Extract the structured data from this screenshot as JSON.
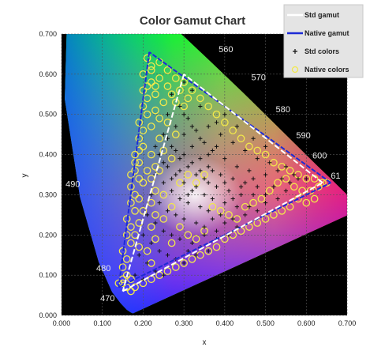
{
  "chart_data": {
    "type": "scatter",
    "title": "Color Gamut Chart",
    "xlabel": "x",
    "ylabel": "y",
    "xlim": [
      0,
      0.7
    ],
    "ylim": [
      0,
      0.7
    ],
    "x_ticks": [
      "0.000",
      "0.100",
      "0.200",
      "0.300",
      "0.400",
      "0.500",
      "0.600",
      "0.700"
    ],
    "y_ticks": [
      "0.000",
      "0.100",
      "0.200",
      "0.300",
      "0.400",
      "0.500",
      "0.600",
      "0.700"
    ],
    "grid": true,
    "legend_position": "top-right",
    "wavelength_labels": [
      {
        "text": "470",
        "x": 0.095,
        "y": 0.035
      },
      {
        "text": "480",
        "x": 0.085,
        "y": 0.11
      },
      {
        "text": "490",
        "x": 0.01,
        "y": 0.32
      },
      {
        "text": "560",
        "x": 0.385,
        "y": 0.655
      },
      {
        "text": "570",
        "x": 0.465,
        "y": 0.585
      },
      {
        "text": "580",
        "x": 0.525,
        "y": 0.505
      },
      {
        "text": "590",
        "x": 0.575,
        "y": 0.44
      },
      {
        "text": "600",
        "x": 0.615,
        "y": 0.39
      },
      {
        "text": "61",
        "x": 0.66,
        "y": 0.34
      }
    ],
    "series": [
      {
        "name": "Std gamut",
        "kind": "line",
        "color": "#ffffff",
        "points": [
          [
            0.64,
            0.33
          ],
          [
            0.3,
            0.6
          ],
          [
            0.15,
            0.06
          ],
          [
            0.64,
            0.33
          ]
        ]
      },
      {
        "name": "Native gamut",
        "kind": "line",
        "color": "#1e2bd6",
        "points": [
          [
            0.66,
            0.33
          ],
          [
            0.215,
            0.655
          ],
          [
            0.14,
            0.07
          ],
          [
            0.66,
            0.33
          ]
        ]
      },
      {
        "name": "Std colors",
        "kind": "marker",
        "marker": "+",
        "color": "#111111",
        "points": [
          [
            0.27,
            0.55
          ],
          [
            0.29,
            0.52
          ],
          [
            0.31,
            0.49
          ],
          [
            0.33,
            0.46
          ],
          [
            0.35,
            0.43
          ],
          [
            0.37,
            0.41
          ],
          [
            0.4,
            0.39
          ],
          [
            0.43,
            0.37
          ],
          [
            0.46,
            0.36
          ],
          [
            0.5,
            0.35
          ],
          [
            0.54,
            0.34
          ],
          [
            0.58,
            0.34
          ],
          [
            0.26,
            0.5
          ],
          [
            0.28,
            0.47
          ],
          [
            0.3,
            0.45
          ],
          [
            0.32,
            0.42
          ],
          [
            0.34,
            0.39
          ],
          [
            0.36,
            0.37
          ],
          [
            0.39,
            0.35
          ],
          [
            0.42,
            0.34
          ],
          [
            0.45,
            0.33
          ],
          [
            0.48,
            0.32
          ],
          [
            0.52,
            0.32
          ],
          [
            0.56,
            0.33
          ],
          [
            0.25,
            0.45
          ],
          [
            0.27,
            0.42
          ],
          [
            0.29,
            0.39
          ],
          [
            0.31,
            0.37
          ],
          [
            0.33,
            0.35
          ],
          [
            0.36,
            0.33
          ],
          [
            0.38,
            0.32
          ],
          [
            0.41,
            0.31
          ],
          [
            0.44,
            0.3
          ],
          [
            0.47,
            0.3
          ],
          [
            0.5,
            0.3
          ],
          [
            0.24,
            0.4
          ],
          [
            0.26,
            0.37
          ],
          [
            0.28,
            0.35
          ],
          [
            0.3,
            0.33
          ],
          [
            0.32,
            0.31
          ],
          [
            0.35,
            0.3
          ],
          [
            0.37,
            0.29
          ],
          [
            0.4,
            0.28
          ],
          [
            0.43,
            0.27
          ],
          [
            0.46,
            0.27
          ],
          [
            0.23,
            0.35
          ],
          [
            0.25,
            0.33
          ],
          [
            0.27,
            0.31
          ],
          [
            0.29,
            0.29
          ],
          [
            0.31,
            0.28
          ],
          [
            0.34,
            0.27
          ],
          [
            0.36,
            0.26
          ],
          [
            0.39,
            0.25
          ],
          [
            0.42,
            0.24
          ],
          [
            0.22,
            0.3
          ],
          [
            0.24,
            0.28
          ],
          [
            0.26,
            0.26
          ],
          [
            0.28,
            0.25
          ],
          [
            0.3,
            0.24
          ],
          [
            0.33,
            0.23
          ],
          [
            0.35,
            0.22
          ],
          [
            0.38,
            0.21
          ],
          [
            0.21,
            0.25
          ],
          [
            0.23,
            0.23
          ],
          [
            0.25,
            0.21
          ],
          [
            0.27,
            0.2
          ],
          [
            0.29,
            0.19
          ],
          [
            0.32,
            0.18
          ],
          [
            0.34,
            0.17
          ],
          [
            0.2,
            0.2
          ],
          [
            0.22,
            0.18
          ],
          [
            0.24,
            0.16
          ],
          [
            0.26,
            0.15
          ],
          [
            0.28,
            0.14
          ],
          [
            0.3,
            0.13
          ],
          [
            0.19,
            0.15
          ],
          [
            0.21,
            0.13
          ],
          [
            0.23,
            0.11
          ],
          [
            0.25,
            0.1
          ],
          [
            0.18,
            0.1
          ],
          [
            0.2,
            0.09
          ],
          [
            0.36,
            0.47
          ],
          [
            0.39,
            0.45
          ],
          [
            0.42,
            0.43
          ],
          [
            0.45,
            0.41
          ],
          [
            0.48,
            0.39
          ],
          [
            0.51,
            0.38
          ],
          [
            0.4,
            0.5
          ],
          [
            0.43,
            0.47
          ],
          [
            0.47,
            0.44
          ],
          [
            0.5,
            0.42
          ],
          [
            0.34,
            0.52
          ],
          [
            0.32,
            0.56
          ],
          [
            0.3,
            0.58
          ],
          [
            0.38,
            0.48
          ],
          [
            0.55,
            0.37
          ],
          [
            0.53,
            0.36
          ],
          [
            0.57,
            0.35
          ],
          [
            0.6,
            0.34
          ],
          [
            0.31,
            0.3
          ],
          [
            0.33,
            0.32
          ],
          [
            0.35,
            0.34
          ],
          [
            0.37,
            0.36
          ],
          [
            0.29,
            0.36
          ],
          [
            0.27,
            0.34
          ],
          [
            0.25,
            0.38
          ],
          [
            0.23,
            0.42
          ],
          [
            0.4,
            0.33
          ],
          [
            0.44,
            0.32
          ],
          [
            0.47,
            0.34
          ],
          [
            0.42,
            0.29
          ],
          [
            0.45,
            0.25
          ],
          [
            0.48,
            0.26
          ],
          [
            0.5,
            0.28
          ],
          [
            0.53,
            0.29
          ],
          [
            0.55,
            0.31
          ],
          [
            0.37,
            0.24
          ],
          [
            0.4,
            0.23
          ],
          [
            0.43,
            0.22
          ],
          [
            0.35,
            0.2
          ],
          [
            0.38,
            0.19
          ],
          [
            0.41,
            0.2
          ],
          [
            0.33,
            0.15
          ],
          [
            0.36,
            0.16
          ],
          [
            0.31,
            0.16
          ],
          [
            0.26,
            0.44
          ],
          [
            0.28,
            0.41
          ],
          [
            0.3,
            0.4
          ],
          [
            0.32,
            0.38
          ],
          [
            0.34,
            0.36
          ],
          [
            0.36,
            0.4
          ],
          [
            0.38,
            0.42
          ],
          [
            0.34,
            0.44
          ],
          [
            0.32,
            0.47
          ],
          [
            0.3,
            0.5
          ]
        ]
      },
      {
        "name": "Native colors",
        "kind": "marker",
        "marker": "circle",
        "color": "#f2e84a",
        "points": [
          [
            0.21,
            0.64
          ],
          [
            0.22,
            0.62
          ],
          [
            0.2,
            0.6
          ],
          [
            0.22,
            0.58
          ],
          [
            0.2,
            0.56
          ],
          [
            0.21,
            0.54
          ],
          [
            0.2,
            0.52
          ],
          [
            0.21,
            0.5
          ],
          [
            0.19,
            0.48
          ],
          [
            0.2,
            0.46
          ],
          [
            0.19,
            0.44
          ],
          [
            0.2,
            0.42
          ],
          [
            0.18,
            0.4
          ],
          [
            0.19,
            0.38
          ],
          [
            0.18,
            0.36
          ],
          [
            0.19,
            0.34
          ],
          [
            0.17,
            0.32
          ],
          [
            0.18,
            0.3
          ],
          [
            0.17,
            0.28
          ],
          [
            0.18,
            0.26
          ],
          [
            0.16,
            0.24
          ],
          [
            0.17,
            0.22
          ],
          [
            0.16,
            0.2
          ],
          [
            0.17,
            0.18
          ],
          [
            0.15,
            0.16
          ],
          [
            0.16,
            0.14
          ],
          [
            0.15,
            0.12
          ],
          [
            0.16,
            0.1
          ],
          [
            0.15,
            0.08
          ],
          [
            0.17,
            0.09
          ],
          [
            0.24,
            0.63
          ],
          [
            0.26,
            0.61
          ],
          [
            0.28,
            0.59
          ],
          [
            0.24,
            0.59
          ],
          [
            0.26,
            0.57
          ],
          [
            0.23,
            0.55
          ],
          [
            0.25,
            0.53
          ],
          [
            0.23,
            0.51
          ],
          [
            0.24,
            0.49
          ],
          [
            0.22,
            0.47
          ],
          [
            0.3,
            0.58
          ],
          [
            0.32,
            0.56
          ],
          [
            0.34,
            0.54
          ],
          [
            0.36,
            0.52
          ],
          [
            0.38,
            0.5
          ],
          [
            0.4,
            0.48
          ],
          [
            0.42,
            0.46
          ],
          [
            0.44,
            0.44
          ],
          [
            0.46,
            0.42
          ],
          [
            0.48,
            0.41
          ],
          [
            0.5,
            0.4
          ],
          [
            0.52,
            0.38
          ],
          [
            0.54,
            0.37
          ],
          [
            0.56,
            0.36
          ],
          [
            0.58,
            0.35
          ],
          [
            0.6,
            0.34
          ],
          [
            0.62,
            0.34
          ],
          [
            0.64,
            0.33
          ],
          [
            0.65,
            0.33
          ],
          [
            0.63,
            0.32
          ],
          [
            0.61,
            0.31
          ],
          [
            0.62,
            0.29
          ],
          [
            0.6,
            0.28
          ],
          [
            0.58,
            0.29
          ],
          [
            0.56,
            0.27
          ],
          [
            0.54,
            0.26
          ],
          [
            0.52,
            0.25
          ],
          [
            0.5,
            0.24
          ],
          [
            0.48,
            0.23
          ],
          [
            0.46,
            0.22
          ],
          [
            0.44,
            0.21
          ],
          [
            0.42,
            0.2
          ],
          [
            0.4,
            0.19
          ],
          [
            0.38,
            0.17
          ],
          [
            0.36,
            0.16
          ],
          [
            0.34,
            0.15
          ],
          [
            0.32,
            0.14
          ],
          [
            0.3,
            0.13
          ],
          [
            0.28,
            0.12
          ],
          [
            0.26,
            0.11
          ],
          [
            0.24,
            0.1
          ],
          [
            0.22,
            0.09
          ],
          [
            0.2,
            0.08
          ],
          [
            0.18,
            0.07
          ],
          [
            0.15,
            0.09
          ],
          [
            0.14,
            0.08
          ],
          [
            0.16,
            0.07
          ],
          [
            0.17,
            0.06
          ],
          [
            0.22,
            0.4
          ],
          [
            0.23,
            0.37
          ],
          [
            0.22,
            0.34
          ],
          [
            0.23,
            0.31
          ],
          [
            0.22,
            0.28
          ],
          [
            0.23,
            0.25
          ],
          [
            0.22,
            0.22
          ],
          [
            0.23,
            0.19
          ],
          [
            0.21,
            0.16
          ],
          [
            0.22,
            0.13
          ],
          [
            0.25,
            0.3
          ],
          [
            0.27,
            0.27
          ],
          [
            0.29,
            0.22
          ],
          [
            0.31,
            0.2
          ],
          [
            0.33,
            0.19
          ],
          [
            0.35,
            0.21
          ],
          [
            0.37,
            0.27
          ],
          [
            0.39,
            0.26
          ],
          [
            0.41,
            0.25
          ],
          [
            0.43,
            0.24
          ],
          [
            0.45,
            0.27
          ],
          [
            0.47,
            0.28
          ],
          [
            0.49,
            0.29
          ],
          [
            0.51,
            0.31
          ],
          [
            0.53,
            0.33
          ],
          [
            0.55,
            0.34
          ],
          [
            0.57,
            0.32
          ],
          [
            0.59,
            0.31
          ],
          [
            0.25,
            0.24
          ],
          [
            0.27,
            0.18
          ],
          [
            0.19,
            0.41
          ],
          [
            0.18,
            0.38
          ],
          [
            0.17,
            0.35
          ],
          [
            0.21,
            0.36
          ],
          [
            0.2,
            0.33
          ],
          [
            0.19,
            0.29
          ],
          [
            0.2,
            0.26
          ],
          [
            0.19,
            0.23
          ],
          [
            0.18,
            0.2
          ],
          [
            0.19,
            0.17
          ],
          [
            0.26,
            0.48
          ],
          [
            0.28,
            0.45
          ],
          [
            0.27,
            0.39
          ],
          [
            0.29,
            0.33
          ],
          [
            0.31,
            0.35
          ],
          [
            0.33,
            0.33
          ],
          [
            0.35,
            0.35
          ],
          [
            0.24,
            0.44
          ],
          [
            0.25,
            0.41
          ],
          [
            0.24,
            0.36
          ],
          [
            0.28,
            0.53
          ],
          [
            0.3,
            0.52
          ],
          [
            0.27,
            0.55
          ],
          [
            0.29,
            0.56
          ],
          [
            0.31,
            0.54
          ],
          [
            0.22,
            0.61
          ],
          [
            0.23,
            0.57
          ],
          [
            0.21,
            0.57
          ]
        ]
      }
    ]
  }
}
